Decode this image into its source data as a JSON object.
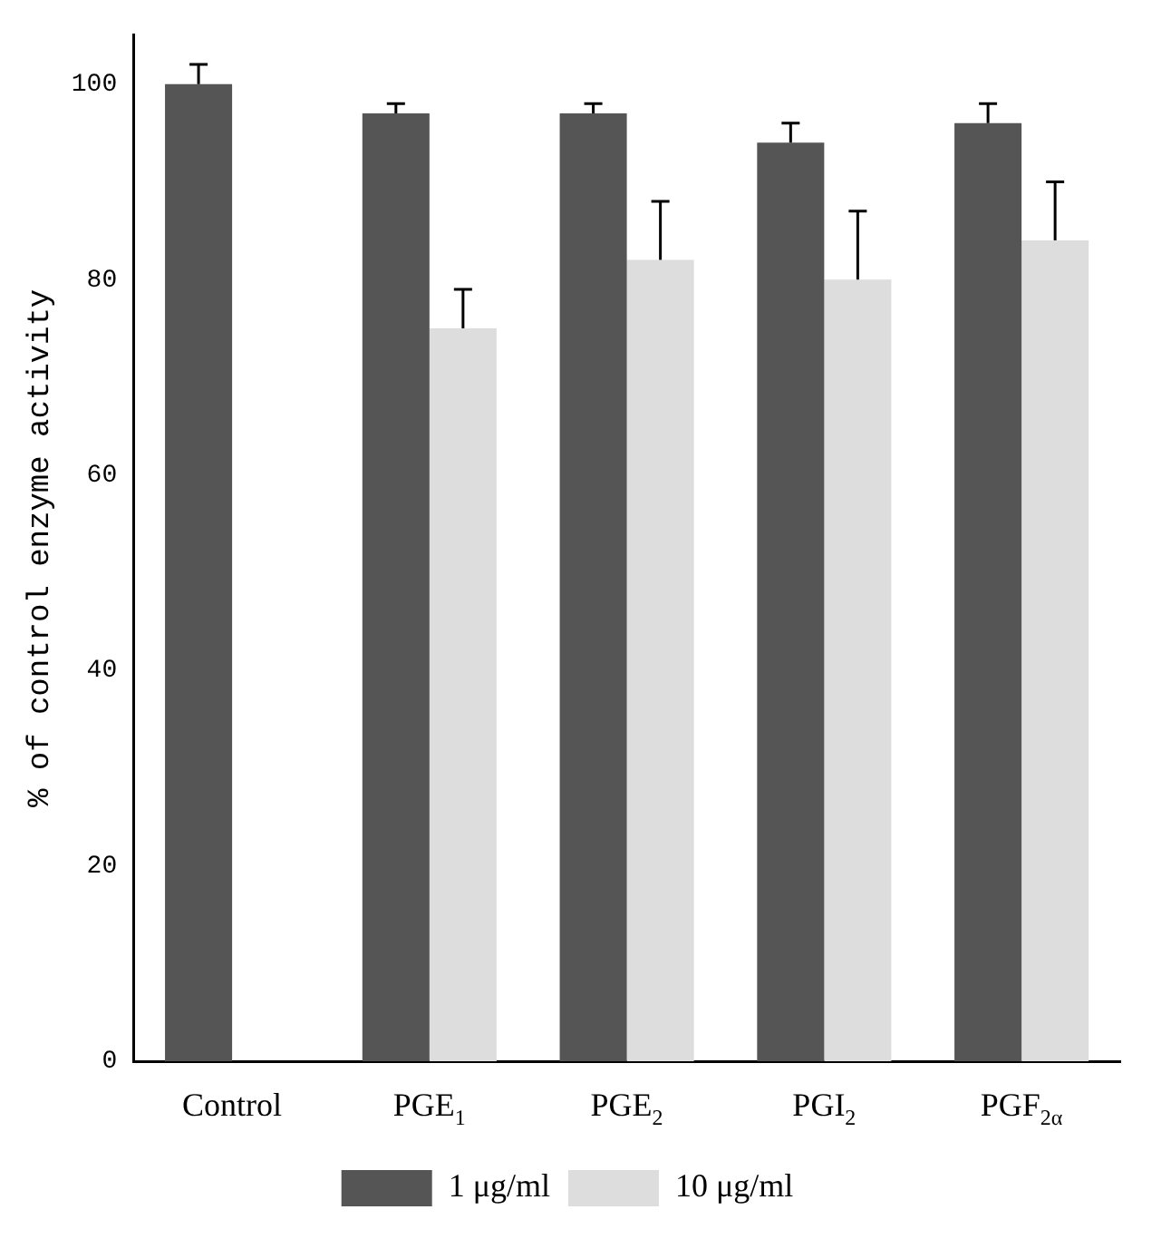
{
  "chart_data": {
    "type": "bar",
    "ylabel": "% of control enzyme activity",
    "categories": [
      "Control",
      "PGE$_{1}$",
      "PGE$_{2}$",
      "PGI$_{2}$",
      "PGF$_{2α}$"
    ],
    "series": [
      {
        "name": "1 μg/ml",
        "color": "#555555",
        "values": [
          100,
          97,
          97,
          94,
          96
        ],
        "errors": [
          [
            100,
            102
          ],
          [
            97,
            98
          ],
          [
            97,
            98
          ],
          [
            94,
            96
          ],
          [
            96,
            98
          ]
        ]
      },
      {
        "name": "10 μg/ml",
        "color": "#dddddd",
        "values": [
          null,
          75,
          82,
          80,
          84
        ],
        "errors": [
          null,
          [
            75,
            79
          ],
          [
            82,
            88
          ],
          [
            80,
            87
          ],
          [
            84,
            90
          ]
        ]
      }
    ],
    "ylim": [
      0,
      105
    ],
    "yticks": [
      0,
      20,
      40,
      60,
      80,
      100
    ],
    "grid": false,
    "legend": "bottom"
  }
}
